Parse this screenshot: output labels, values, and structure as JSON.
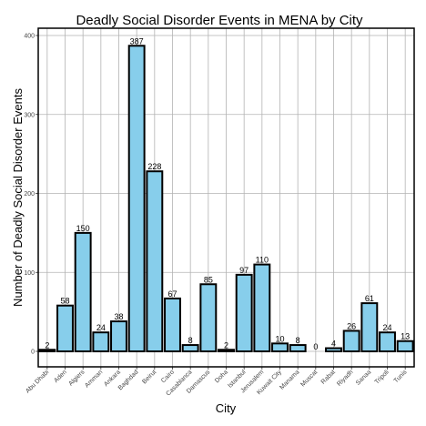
{
  "chart_data": {
    "type": "bar",
    "title": "Deadly Social Disorder Events in MENA by City",
    "xlabel": "City",
    "ylabel": "Number of Deadly Social Disorder Events",
    "categories": [
      "Abu Dhabi",
      "Aden",
      "Algiers",
      "Amman",
      "Ankara",
      "Baghdad",
      "Beirut",
      "Cairo",
      "Casablanca",
      "Damascus",
      "Doha",
      "Istanbul",
      "Jerusalem",
      "Kuwait City",
      "Manama",
      "Muscat",
      "Rabat",
      "Riyadh",
      "Sanaa",
      "Tripoli",
      "Tunis"
    ],
    "values": [
      2,
      58,
      150,
      24,
      38,
      387,
      228,
      67,
      8,
      85,
      2,
      97,
      110,
      10,
      8,
      0,
      4,
      26,
      61,
      24,
      13
    ],
    "ylim": [
      0,
      400
    ],
    "yticks": [
      0,
      100,
      200,
      300,
      400
    ],
    "grid": true,
    "bar_color": "#87ceeb",
    "bar_edge_color": "#000000",
    "grid_color": "#b3b3b3"
  }
}
